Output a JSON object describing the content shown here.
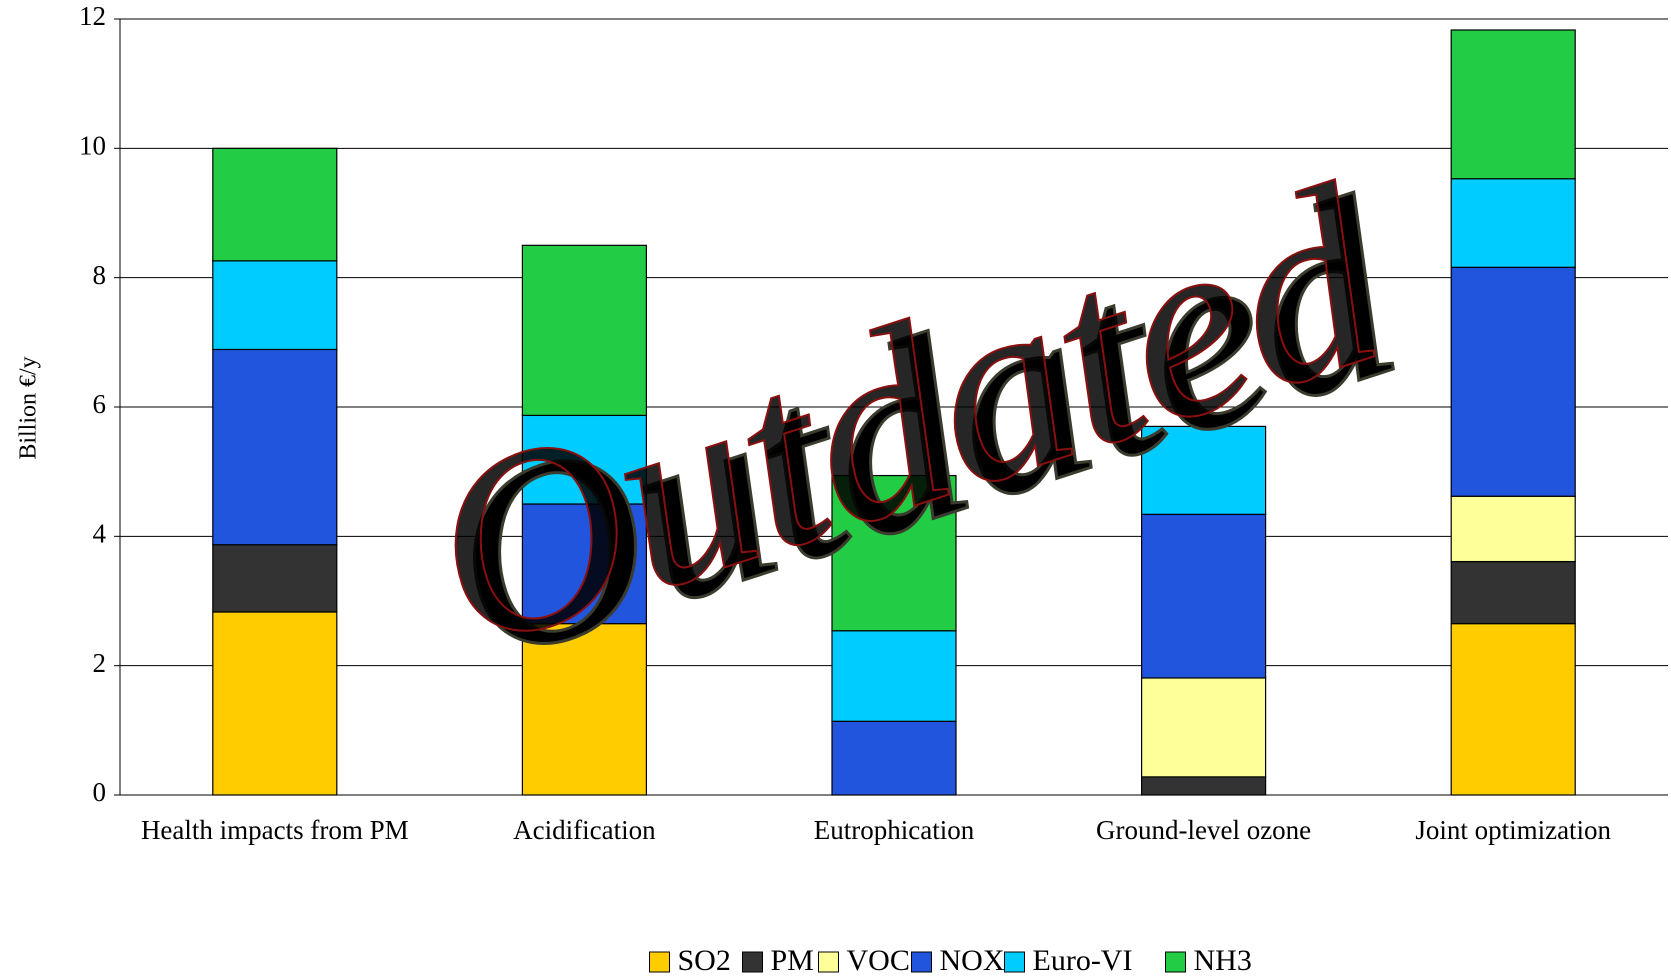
{
  "chart_data": {
    "type": "stacked_bar",
    "y_label": "Billion €/y",
    "annotation": "Outdated",
    "categories": [
      "Health impacts from PM",
      "Acidification",
      "Eutrophication",
      "Ground-level ozone",
      "Joint optimization"
    ],
    "series": [
      {
        "name": "SO2",
        "color": "#ffcc00",
        "values": [
          2.83,
          2.65,
          0,
          0,
          2.65
        ]
      },
      {
        "name": "PM",
        "color": "#333333",
        "values": [
          1.04,
          0,
          0,
          0.28,
          0.96
        ]
      },
      {
        "name": "VOC",
        "color": "#ffff99",
        "values": [
          0,
          0,
          0,
          1.53,
          1.01
        ]
      },
      {
        "name": "NOX",
        "color": "#2255dd",
        "values": [
          3.02,
          1.85,
          1.14,
          2.53,
          3.54
        ]
      },
      {
        "name": "Euro-VI",
        "color": "#00ccff",
        "values": [
          1.37,
          1.37,
          1.4,
          1.36,
          1.37
        ]
      },
      {
        "name": "NH3",
        "color": "#22cc44",
        "values": [
          1.74,
          2.63,
          2.4,
          0,
          2.3
        ]
      }
    ],
    "ylim": [
      0,
      12
    ],
    "yticks": [
      0,
      2,
      4,
      6,
      8,
      10,
      12
    ],
    "grid": true,
    "legend": "bottom"
  }
}
